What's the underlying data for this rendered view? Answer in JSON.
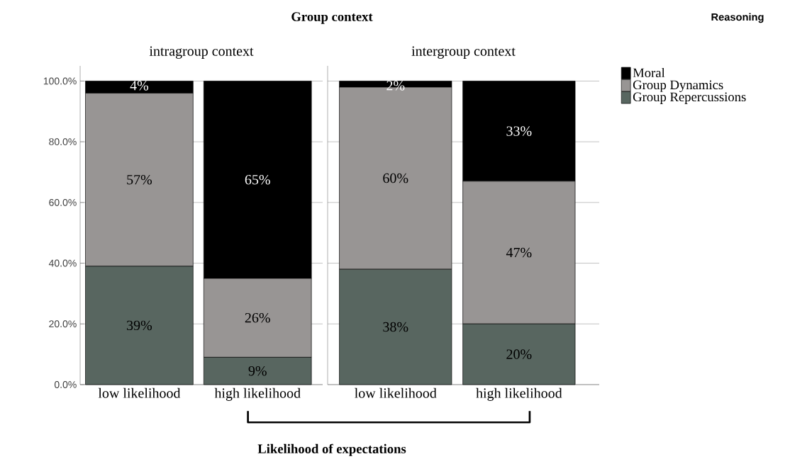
{
  "chart_data": [
    {
      "type": "bar",
      "stacked": true,
      "title": "Group context",
      "subtitle": "intragroup context",
      "xlabel": "Likelihood of expectations",
      "categories": [
        "low likelihood",
        "high likelihood"
      ],
      "ylim": [
        0,
        105
      ],
      "yticks": [
        {
          "value": 0,
          "label": "0.0%"
        },
        {
          "value": 20,
          "label": "20.0%"
        },
        {
          "value": 40,
          "label": "40.0%"
        },
        {
          "value": 60,
          "label": "60.0%"
        },
        {
          "value": 80,
          "label": "80.0%"
        },
        {
          "value": 100,
          "label": "100.0%"
        }
      ],
      "grid": "y",
      "series": [
        {
          "color": "#586660",
          "values": [
            39,
            9
          ],
          "value_labels": [
            "39%",
            "9%"
          ]
        },
        {
          "color": "#989594",
          "values": [
            57,
            26
          ],
          "value_labels": [
            "57%",
            "26%"
          ]
        },
        {
          "color": "#000000",
          "values": [
            4,
            65
          ],
          "value_labels": [
            "4%",
            "65%"
          ]
        }
      ]
    },
    {
      "type": "bar",
      "stacked": true,
      "subtitle": "intergroup context",
      "legend": "top right",
      "legend_title": "Reasoning",
      "tick_labels": "x",
      "categories": [
        "low likelihood",
        "high likelihood"
      ],
      "ylim": [
        0,
        105
      ],
      "yticks": [
        0,
        20,
        40,
        60,
        80,
        100
      ],
      "grid": "y",
      "series": [
        {
          "name": "Group Repercussions",
          "color": "#586660",
          "values": [
            38,
            20
          ],
          "value_labels": [
            "38%",
            "20%"
          ]
        },
        {
          "name": "Group Dynamics",
          "color": "#989594",
          "values": [
            60,
            47
          ],
          "value_labels": [
            "60%",
            "47%"
          ]
        },
        {
          "name": "Moral",
          "color": "#000000",
          "values": [
            2,
            33
          ],
          "value_labels": [
            "2%",
            "33%"
          ]
        }
      ]
    }
  ]
}
